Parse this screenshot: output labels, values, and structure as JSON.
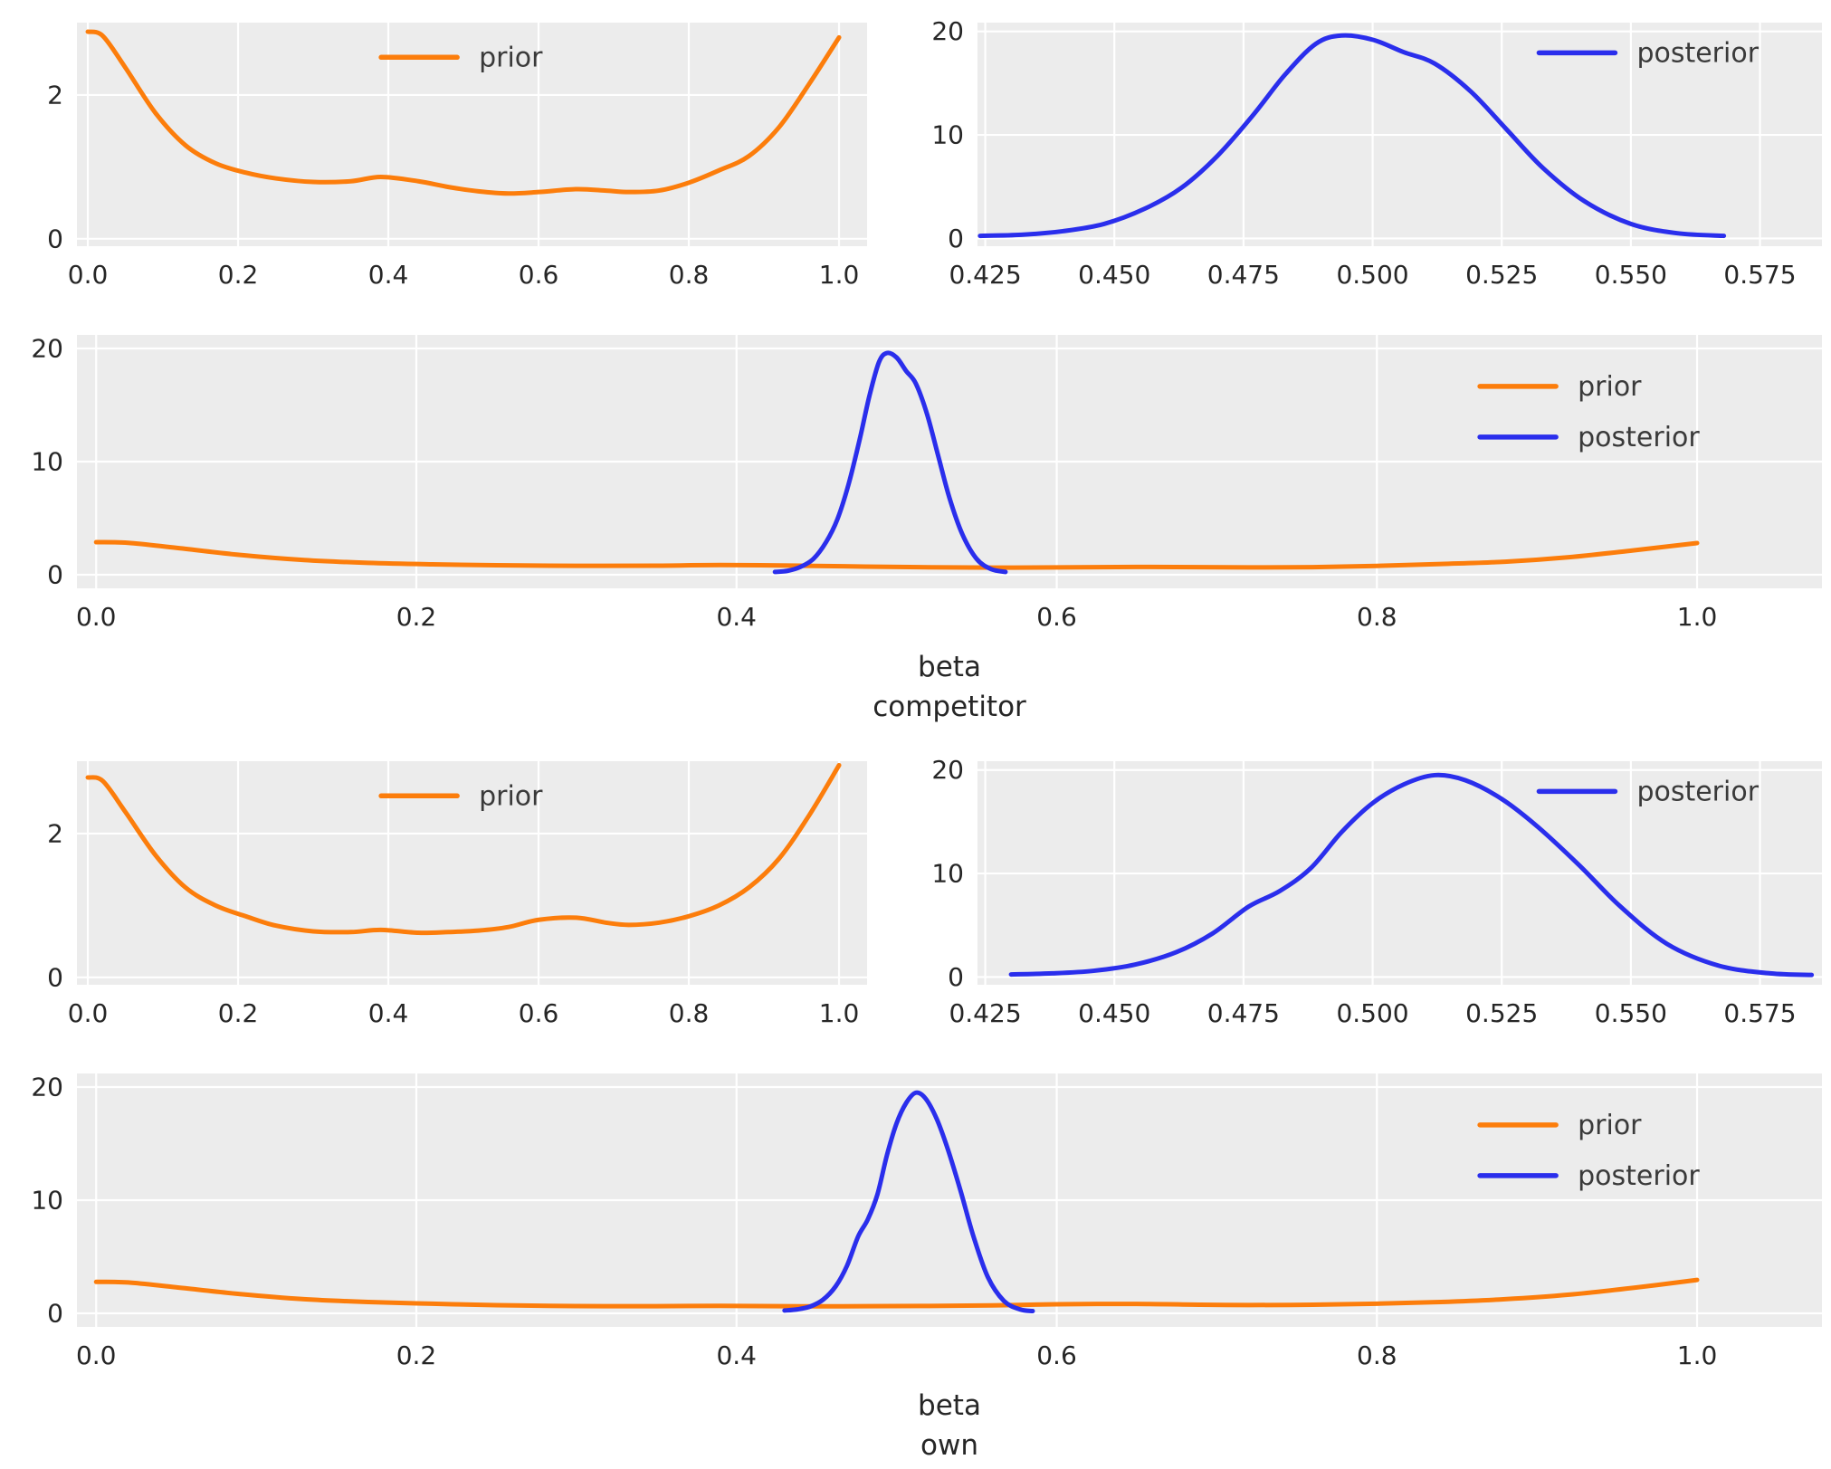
{
  "figure": {
    "background": "#ffffff",
    "panel_background": "#ececec",
    "grid_color": "#ffffff",
    "text_color": "#262626",
    "prior_color": "#fc7d0b",
    "posterior_color": "#2a2eec"
  },
  "chart_data": [
    {
      "id": "competitor-prior",
      "type": "line",
      "title": "",
      "xlabel": [],
      "xlim": [
        -0.0145,
        1.0373
      ],
      "ylim": [
        -0.103,
        3.006
      ],
      "xticks": [
        0,
        0.2,
        0.4,
        0.6,
        0.8,
        1.0
      ],
      "xtick_labels": [
        "0.0",
        "0.2",
        "0.4",
        "0.6",
        "0.8",
        "1.0"
      ],
      "yticks": [
        0,
        2
      ],
      "ytick_labels": [
        "0",
        "2"
      ],
      "legend": {
        "x": 0.385,
        "y": 0.155,
        "entries": [
          {
            "label": "prior",
            "color": "#fc7d0b"
          }
        ]
      },
      "series": [
        {
          "name": "prior",
          "color": "#fc7d0b",
          "x": [
            0.0,
            0.02,
            0.05,
            0.09,
            0.13,
            0.17,
            0.21,
            0.25,
            0.3,
            0.35,
            0.39,
            0.44,
            0.48,
            0.52,
            0.56,
            0.6,
            0.65,
            0.69,
            0.72,
            0.76,
            0.8,
            0.84,
            0.88,
            0.92,
            0.96,
            1.0
          ],
          "y": [
            2.88,
            2.82,
            2.38,
            1.75,
            1.3,
            1.05,
            0.92,
            0.84,
            0.79,
            0.8,
            0.86,
            0.8,
            0.72,
            0.66,
            0.63,
            0.65,
            0.69,
            0.67,
            0.65,
            0.67,
            0.78,
            0.95,
            1.15,
            1.55,
            2.15,
            2.8
          ]
        }
      ]
    },
    {
      "id": "competitor-posterior",
      "type": "line",
      "title": "",
      "xlabel": [],
      "xlim": [
        0.4235,
        0.587
      ],
      "ylim": [
        -0.75,
        20.85
      ],
      "xticks": [
        0.425,
        0.45,
        0.475,
        0.5,
        0.525,
        0.55,
        0.575
      ],
      "xtick_labels": [
        "0.425",
        "0.450",
        "0.475",
        "0.500",
        "0.525",
        "0.550",
        "0.575"
      ],
      "yticks": [
        0,
        10,
        20
      ],
      "ytick_labels": [
        "0",
        "10",
        "20"
      ],
      "legend": {
        "x": 0.665,
        "y": 0.135,
        "entries": [
          {
            "label": "posterior",
            "color": "#2a2eec"
          }
        ]
      },
      "series": [
        {
          "name": "posterior",
          "color": "#2a2eec",
          "x": [
            0.424,
            0.432,
            0.44,
            0.448,
            0.456,
            0.463,
            0.47,
            0.477,
            0.483,
            0.489,
            0.494,
            0.5,
            0.506,
            0.512,
            0.519,
            0.526,
            0.533,
            0.541,
            0.55,
            0.559,
            0.568
          ],
          "y": [
            0.25,
            0.35,
            0.7,
            1.4,
            2.9,
            4.9,
            8.0,
            12.0,
            15.8,
            18.8,
            19.6,
            19.2,
            18.0,
            16.9,
            14.2,
            10.5,
            6.8,
            3.6,
            1.4,
            0.5,
            0.25
          ]
        }
      ]
    },
    {
      "id": "competitor-combined",
      "type": "line",
      "title": "",
      "xlabel": [
        "beta",
        "competitor"
      ],
      "xlim": [
        -0.012,
        1.078
      ],
      "ylim": [
        -1.2,
        21.2
      ],
      "xticks": [
        0,
        0.2,
        0.4,
        0.6,
        0.8,
        1.0
      ],
      "xtick_labels": [
        "0.0",
        "0.2",
        "0.4",
        "0.6",
        "0.8",
        "1.0"
      ],
      "yticks": [
        0,
        10,
        20
      ],
      "ytick_labels": [
        "0",
        "10",
        "20"
      ],
      "legend": {
        "x": 0.804,
        "y": 0.203,
        "entries": [
          {
            "label": "prior",
            "color": "#fc7d0b"
          },
          {
            "label": "posterior",
            "color": "#2a2eec"
          }
        ]
      },
      "series": [
        {
          "name": "prior",
          "color": "#fc7d0b",
          "x": [
            0.0,
            0.02,
            0.05,
            0.09,
            0.13,
            0.17,
            0.21,
            0.25,
            0.3,
            0.35,
            0.39,
            0.44,
            0.48,
            0.52,
            0.56,
            0.6,
            0.65,
            0.69,
            0.72,
            0.76,
            0.8,
            0.84,
            0.88,
            0.92,
            0.96,
            1.0
          ],
          "y": [
            2.88,
            2.82,
            2.38,
            1.75,
            1.3,
            1.05,
            0.92,
            0.84,
            0.79,
            0.8,
            0.86,
            0.8,
            0.72,
            0.66,
            0.63,
            0.65,
            0.69,
            0.67,
            0.65,
            0.67,
            0.78,
            0.95,
            1.15,
            1.55,
            2.15,
            2.8
          ]
        },
        {
          "name": "posterior",
          "color": "#2a2eec",
          "x": [
            0.424,
            0.432,
            0.44,
            0.448,
            0.456,
            0.463,
            0.47,
            0.477,
            0.483,
            0.489,
            0.494,
            0.5,
            0.506,
            0.512,
            0.519,
            0.526,
            0.533,
            0.541,
            0.55,
            0.559,
            0.568
          ],
          "y": [
            0.25,
            0.35,
            0.7,
            1.4,
            2.9,
            4.9,
            8.0,
            12.0,
            15.8,
            18.8,
            19.6,
            19.2,
            18.0,
            16.9,
            14.2,
            10.5,
            6.8,
            3.6,
            1.4,
            0.5,
            0.25
          ]
        }
      ]
    },
    {
      "id": "own-prior",
      "type": "line",
      "title": "",
      "xlabel": [],
      "xlim": [
        -0.0145,
        1.0373
      ],
      "ylim": [
        -0.103,
        3.006
      ],
      "xticks": [
        0,
        0.2,
        0.4,
        0.6,
        0.8,
        1.0
      ],
      "xtick_labels": [
        "0.0",
        "0.2",
        "0.4",
        "0.6",
        "0.8",
        "1.0"
      ],
      "yticks": [
        0,
        2
      ],
      "ytick_labels": [
        "0",
        "2"
      ],
      "legend": {
        "x": 0.385,
        "y": 0.155,
        "entries": [
          {
            "label": "prior",
            "color": "#fc7d0b"
          }
        ]
      },
      "series": [
        {
          "name": "prior",
          "color": "#fc7d0b",
          "x": [
            0.0,
            0.02,
            0.05,
            0.09,
            0.13,
            0.17,
            0.21,
            0.25,
            0.3,
            0.35,
            0.39,
            0.44,
            0.48,
            0.52,
            0.56,
            0.6,
            0.65,
            0.69,
            0.72,
            0.76,
            0.8,
            0.84,
            0.88,
            0.92,
            0.96,
            1.0
          ],
          "y": [
            2.78,
            2.73,
            2.3,
            1.7,
            1.25,
            1.0,
            0.85,
            0.72,
            0.64,
            0.63,
            0.66,
            0.62,
            0.63,
            0.65,
            0.7,
            0.8,
            0.83,
            0.76,
            0.73,
            0.76,
            0.85,
            1.0,
            1.25,
            1.65,
            2.25,
            2.95
          ]
        }
      ]
    },
    {
      "id": "own-posterior",
      "type": "line",
      "title": "",
      "xlabel": [],
      "xlim": [
        0.4235,
        0.587
      ],
      "ylim": [
        -0.75,
        20.85
      ],
      "xticks": [
        0.425,
        0.45,
        0.475,
        0.5,
        0.525,
        0.55,
        0.575
      ],
      "xtick_labels": [
        "0.425",
        "0.450",
        "0.475",
        "0.500",
        "0.525",
        "0.550",
        "0.575"
      ],
      "yticks": [
        0,
        10,
        20
      ],
      "ytick_labels": [
        "0",
        "10",
        "20"
      ],
      "legend": {
        "x": 0.665,
        "y": 0.135,
        "entries": [
          {
            "label": "posterior",
            "color": "#2a2eec"
          }
        ]
      },
      "series": [
        {
          "name": "posterior",
          "color": "#2a2eec",
          "x": [
            0.43,
            0.438,
            0.446,
            0.454,
            0.462,
            0.469,
            0.476,
            0.482,
            0.488,
            0.494,
            0.5,
            0.506,
            0.512,
            0.518,
            0.525,
            0.532,
            0.54,
            0.548,
            0.557,
            0.567,
            0.577,
            0.585
          ],
          "y": [
            0.25,
            0.35,
            0.6,
            1.2,
            2.4,
            4.2,
            6.8,
            8.3,
            10.5,
            14.0,
            16.8,
            18.6,
            19.5,
            19.0,
            17.2,
            14.5,
            10.8,
            6.8,
            3.2,
            1.1,
            0.35,
            0.2
          ]
        }
      ]
    },
    {
      "id": "own-combined",
      "type": "line",
      "title": "",
      "xlabel": [
        "beta",
        "own"
      ],
      "xlim": [
        -0.012,
        1.078
      ],
      "ylim": [
        -1.2,
        21.2
      ],
      "xticks": [
        0,
        0.2,
        0.4,
        0.6,
        0.8,
        1.0
      ],
      "xtick_labels": [
        "0.0",
        "0.2",
        "0.4",
        "0.6",
        "0.8",
        "1.0"
      ],
      "yticks": [
        0,
        10,
        20
      ],
      "ytick_labels": [
        "0",
        "10",
        "20"
      ],
      "legend": {
        "x": 0.804,
        "y": 0.203,
        "entries": [
          {
            "label": "prior",
            "color": "#fc7d0b"
          },
          {
            "label": "posterior",
            "color": "#2a2eec"
          }
        ]
      },
      "series": [
        {
          "name": "prior",
          "color": "#fc7d0b",
          "x": [
            0.0,
            0.02,
            0.05,
            0.09,
            0.13,
            0.17,
            0.21,
            0.25,
            0.3,
            0.35,
            0.39,
            0.44,
            0.48,
            0.52,
            0.56,
            0.6,
            0.65,
            0.69,
            0.72,
            0.76,
            0.8,
            0.84,
            0.88,
            0.92,
            0.96,
            1.0
          ],
          "y": [
            2.78,
            2.73,
            2.3,
            1.7,
            1.25,
            1.0,
            0.85,
            0.72,
            0.64,
            0.63,
            0.66,
            0.62,
            0.63,
            0.65,
            0.7,
            0.8,
            0.83,
            0.76,
            0.73,
            0.76,
            0.85,
            1.0,
            1.25,
            1.65,
            2.25,
            2.95
          ]
        },
        {
          "name": "posterior",
          "color": "#2a2eec",
          "x": [
            0.43,
            0.438,
            0.446,
            0.454,
            0.462,
            0.469,
            0.476,
            0.482,
            0.488,
            0.494,
            0.5,
            0.506,
            0.512,
            0.518,
            0.525,
            0.532,
            0.54,
            0.548,
            0.557,
            0.567,
            0.577,
            0.585
          ],
          "y": [
            0.25,
            0.35,
            0.6,
            1.2,
            2.4,
            4.2,
            6.8,
            8.3,
            10.5,
            14.0,
            16.8,
            18.6,
            19.5,
            19.0,
            17.2,
            14.5,
            10.8,
            6.8,
            3.2,
            1.1,
            0.35,
            0.2
          ]
        }
      ]
    }
  ]
}
